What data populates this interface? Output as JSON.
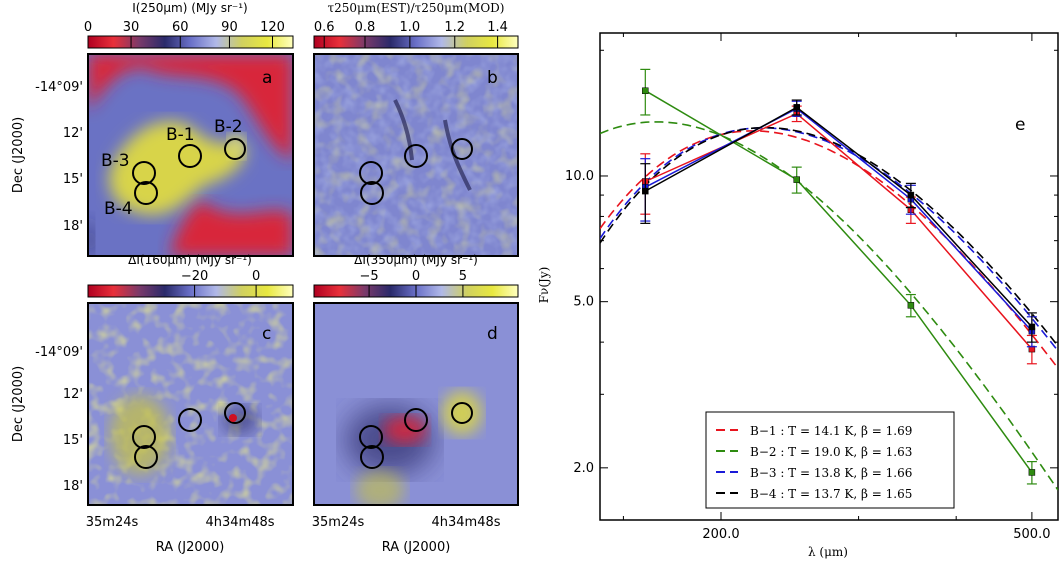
{
  "maps": {
    "ytick_labels": [
      "-14°09'",
      "12'",
      "15'",
      "18'"
    ],
    "xtick_labels": [
      "35m24s",
      "4h34m48s"
    ],
    "ylabel": "Dec (J2000)",
    "xlabel": "RA (J2000)",
    "panels": [
      {
        "letter": "a",
        "colorbar_title": "I(250μm) (MJy sr⁻¹)",
        "colorbar_ticks": [
          "0",
          "30",
          "60",
          "90",
          "120"
        ],
        "colorbar_colors": [
          "#b00020",
          "#e8303a",
          "#7a3a6a",
          "#2a2a6a",
          "#6a70c8",
          "#b0b8e8",
          "#d0d060",
          "#e8e840",
          "#ffffc0"
        ],
        "sources": [
          {
            "label": "B-1"
          },
          {
            "label": "B-2"
          },
          {
            "label": "B-3"
          },
          {
            "label": "B-4"
          }
        ]
      },
      {
        "letter": "b",
        "colorbar_title": "τ250μm(EST)/τ250μm(MOD)",
        "colorbar_ticks": [
          "0.6",
          "0.8",
          "1.0",
          "1.2",
          "1.4"
        ],
        "colorbar_colors": [
          "#b00020",
          "#e8303a",
          "#7a3a6a",
          "#2a2a6a",
          "#6a70c8",
          "#b0b8e8",
          "#d0d060",
          "#e8e840",
          "#ffffc0"
        ],
        "sources": []
      },
      {
        "letter": "c",
        "colorbar_title": "ΔI(160μm) (MJy sr⁻¹)",
        "colorbar_ticks": [
          "−20",
          "0"
        ],
        "colorbar_colors": [
          "#b00020",
          "#e8303a",
          "#7a3a6a",
          "#2a2a6a",
          "#6a70c8",
          "#b0b8e8",
          "#d0d060",
          "#e8e840",
          "#ffffc0"
        ],
        "sources": []
      },
      {
        "letter": "d",
        "colorbar_title": "ΔI(350μm) (MJy sr⁻¹)",
        "colorbar_ticks": [
          "−5",
          "0",
          "5"
        ],
        "colorbar_colors": [
          "#b00020",
          "#e8303a",
          "#7a3a6a",
          "#2a2a6a",
          "#6a70c8",
          "#b0b8e8",
          "#d0d060",
          "#e8e840",
          "#ffffc0"
        ],
        "sources": []
      }
    ]
  },
  "chart_data": {
    "type": "line",
    "panel_letter": "e",
    "xlabel": "λ (μm)",
    "ylabel": "Fν(Jy)",
    "xscale": "log",
    "yscale": "log",
    "xlim": [
      140,
      540
    ],
    "ylim": [
      1.5,
      22
    ],
    "xtick_labels": [
      "200.0",
      "500.0"
    ],
    "ytick_labels": [
      "2.0",
      "5.0",
      "10.0"
    ],
    "legend_position": "bottom-center",
    "x": [
      160,
      250,
      350,
      500
    ],
    "series": [
      {
        "name": "B−1",
        "legend_text": "B−1 :  T = 14.1 K,  β = 1.69",
        "color": "#e8141e",
        "values": [
          9.7,
          14.1,
          8.3,
          3.85
        ],
        "err": [
          1.6,
          0.6,
          0.6,
          0.3
        ],
        "fit_T": 14.1,
        "fit_beta": 1.69
      },
      {
        "name": "B−2",
        "legend_text": "B−2 :  T = 19.0 K,  β = 1.63",
        "color": "#2e8b10",
        "values": [
          16.0,
          9.8,
          4.9,
          1.95
        ],
        "err": [
          2.0,
          0.7,
          0.3,
          0.12
        ],
        "fit_T": 19.0,
        "fit_beta": 1.63
      },
      {
        "name": "B−3",
        "legend_text": "B−3 :  T = 13.8 K,  β = 1.66",
        "color": "#1a1ad8",
        "values": [
          9.4,
          14.5,
          8.8,
          4.25
        ],
        "err": [
          1.6,
          0.6,
          0.7,
          0.35
        ],
        "fit_T": 13.8,
        "fit_beta": 1.66
      },
      {
        "name": "B−4",
        "legend_text": "B−4 :  T = 13.7 K,  β = 1.65",
        "color": "#000000",
        "values": [
          9.2,
          14.6,
          9.0,
          4.35
        ],
        "err": [
          1.5,
          0.6,
          0.6,
          0.35
        ],
        "fit_T": 13.7,
        "fit_beta": 1.65
      }
    ]
  }
}
